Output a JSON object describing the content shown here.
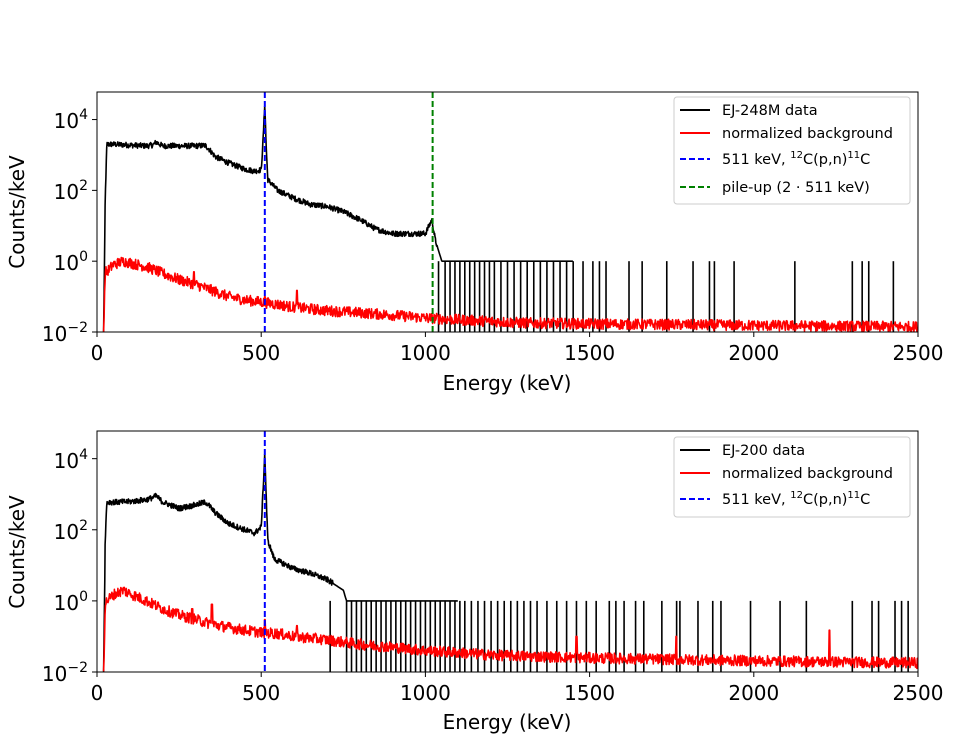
{
  "chart_data": [
    {
      "type": "line",
      "yscale": "log",
      "xlim": [
        0,
        2500
      ],
      "ylim": [
        0.01,
        60000
      ],
      "xticks": [
        "0",
        "500",
        "1000",
        "1500",
        "2000",
        "2500"
      ],
      "ytick_values": [
        0.01,
        1,
        100,
        10000
      ],
      "ytick_exponents": [
        "−2",
        "0",
        "2",
        "4"
      ],
      "ytick_base": "10",
      "xlabel": "Energy (keV)",
      "ylabel": "Counts/keV",
      "legend_position": "top-right",
      "series": [
        {
          "name": "EJ-248M data",
          "color": "#000000",
          "style": "solid",
          "points": [
            [
              20,
              0.01
            ],
            [
              25,
              50
            ],
            [
              30,
              2000
            ],
            [
              50,
              2000
            ],
            [
              100,
              1900
            ],
            [
              150,
              1800
            ],
            [
              170,
              1900
            ],
            [
              180,
              2300
            ],
            [
              200,
              1800
            ],
            [
              250,
              1800
            ],
            [
              300,
              1800
            ],
            [
              330,
              1850
            ],
            [
              340,
              1500
            ],
            [
              360,
              900
            ],
            [
              400,
              600
            ],
            [
              450,
              400
            ],
            [
              480,
              350
            ],
            [
              500,
              380
            ],
            [
              505,
              2000
            ],
            [
              511,
              30000
            ],
            [
              515,
              2000
            ],
            [
              520,
              200
            ],
            [
              550,
              100
            ],
            [
              600,
              60
            ],
            [
              650,
              40
            ],
            [
              700,
              35
            ],
            [
              750,
              25
            ],
            [
              800,
              15
            ],
            [
              850,
              8
            ],
            [
              900,
              6
            ],
            [
              950,
              6
            ],
            [
              1000,
              6
            ],
            [
              1020,
              15
            ],
            [
              1030,
              4
            ],
            [
              1040,
              2
            ],
            [
              1050,
              1
            ],
            [
              1100,
              1
            ],
            [
              1200,
              1
            ],
            [
              1300,
              1
            ],
            [
              1400,
              1
            ],
            [
              1450,
              1
            ]
          ],
          "spikes": [
            1040,
            1060,
            1075,
            1090,
            1105,
            1120,
            1135,
            1150,
            1165,
            1180,
            1195,
            1210,
            1230,
            1250,
            1270,
            1290,
            1310,
            1330,
            1350,
            1370,
            1390,
            1410,
            1430,
            1450,
            1480,
            1510,
            1530,
            1550,
            1620,
            1660,
            1735,
            1815,
            1865,
            1880,
            1940,
            2125,
            2300,
            2330,
            2350,
            2425
          ],
          "spike_value": 1
        },
        {
          "name": "normalized background",
          "color": "#ff0000",
          "style": "solid",
          "points": [
            [
              20,
              0.01
            ],
            [
              25,
              0.5
            ],
            [
              30,
              0.5
            ],
            [
              50,
              0.8
            ],
            [
              80,
              1.0
            ],
            [
              100,
              0.9
            ],
            [
              150,
              0.7
            ],
            [
              200,
              0.45
            ],
            [
              250,
              0.3
            ],
            [
              300,
              0.22
            ],
            [
              350,
              0.15
            ],
            [
              400,
              0.1
            ],
            [
              450,
              0.08
            ],
            [
              500,
              0.07
            ],
            [
              550,
              0.06
            ],
            [
              600,
              0.05
            ],
            [
              700,
              0.04
            ],
            [
              800,
              0.035
            ],
            [
              900,
              0.03
            ],
            [
              1000,
              0.025
            ],
            [
              1100,
              0.022
            ],
            [
              1200,
              0.02
            ],
            [
              1300,
              0.018
            ],
            [
              1500,
              0.017
            ],
            [
              1800,
              0.016
            ],
            [
              2100,
              0.015
            ],
            [
              2500,
              0.014
            ]
          ],
          "peaks": [
            [
              185,
              0.3
            ],
            [
              295,
              0.5
            ],
            [
              511,
              0.1
            ],
            [
              609,
              0.15
            ]
          ]
        },
        {
          "name": "511 keV, 12C(p,n)11C",
          "color": "#0000ff",
          "style": "dashed",
          "vline": 511
        },
        {
          "name": "pile-up (2 · 511 keV)",
          "color": "#008000",
          "style": "dashed",
          "vline": 1022
        }
      ],
      "legend": {
        "data_label": "EJ-248M data",
        "bg_label": "normalized background",
        "line511_pre": "511 keV, ",
        "line511_sup1": "12",
        "line511_mid": "C(p,n)",
        "line511_sup2": "11",
        "line511_post": "C",
        "pileup_label": "pile-up (2 · 511 keV)"
      }
    },
    {
      "type": "line",
      "yscale": "log",
      "xlim": [
        0,
        2500
      ],
      "ylim": [
        0.01,
        60000
      ],
      "xticks": [
        "0",
        "500",
        "1000",
        "1500",
        "2000",
        "2500"
      ],
      "ytick_values": [
        0.01,
        1,
        100,
        10000
      ],
      "ytick_exponents": [
        "−2",
        "0",
        "2",
        "4"
      ],
      "ytick_base": "10",
      "xlabel": "Energy (keV)",
      "ylabel": "Counts/keV",
      "legend_position": "top-right",
      "series": [
        {
          "name": "EJ-200 data",
          "color": "#000000",
          "style": "solid",
          "points": [
            [
              20,
              0.01
            ],
            [
              25,
              50
            ],
            [
              30,
              600
            ],
            [
              60,
              600
            ],
            [
              100,
              620
            ],
            [
              150,
              700
            ],
            [
              170,
              800
            ],
            [
              180,
              900
            ],
            [
              200,
              600
            ],
            [
              250,
              400
            ],
            [
              300,
              500
            ],
            [
              330,
              600
            ],
            [
              340,
              500
            ],
            [
              360,
              300
            ],
            [
              400,
              150
            ],
            [
              450,
              100
            ],
            [
              480,
              80
            ],
            [
              500,
              120
            ],
            [
              505,
              1000
            ],
            [
              511,
              15000
            ],
            [
              515,
              1000
            ],
            [
              520,
              50
            ],
            [
              540,
              15
            ],
            [
              600,
              8
            ],
            [
              650,
              6
            ],
            [
              700,
              4
            ],
            [
              750,
              2
            ],
            [
              760,
              1
            ],
            [
              800,
              1
            ],
            [
              900,
              1
            ],
            [
              1000,
              1
            ],
            [
              1100,
              1
            ]
          ],
          "spikes": [
            710,
            760,
            775,
            790,
            805,
            820,
            835,
            850,
            865,
            880,
            895,
            910,
            925,
            940,
            955,
            970,
            985,
            1000,
            1015,
            1030,
            1045,
            1060,
            1075,
            1090,
            1105,
            1120,
            1140,
            1160,
            1180,
            1200,
            1220,
            1240,
            1260,
            1280,
            1300,
            1320,
            1340,
            1370,
            1400,
            1430,
            1460,
            1490,
            1520,
            1560,
            1580,
            1605,
            1640,
            1665,
            1720,
            1765,
            1775,
            1830,
            1875,
            1900,
            1990,
            2080,
            2160,
            2300,
            2360,
            2380,
            2430,
            2450,
            2470
          ],
          "spike_value": 1
        },
        {
          "name": "normalized background",
          "color": "#ff0000",
          "style": "solid",
          "points": [
            [
              20,
              0.01
            ],
            [
              25,
              0.8
            ],
            [
              30,
              1.0
            ],
            [
              50,
              1.5
            ],
            [
              80,
              2.0
            ],
            [
              100,
              1.6
            ],
            [
              150,
              1.0
            ],
            [
              200,
              0.6
            ],
            [
              250,
              0.4
            ],
            [
              300,
              0.3
            ],
            [
              350,
              0.22
            ],
            [
              400,
              0.18
            ],
            [
              450,
              0.15
            ],
            [
              500,
              0.13
            ],
            [
              550,
              0.12
            ],
            [
              600,
              0.1
            ],
            [
              700,
              0.08
            ],
            [
              800,
              0.06
            ],
            [
              900,
              0.05
            ],
            [
              1000,
              0.04
            ],
            [
              1100,
              0.035
            ],
            [
              1200,
              0.03
            ],
            [
              1300,
              0.028
            ],
            [
              1500,
              0.025
            ],
            [
              1800,
              0.022
            ],
            [
              2100,
              0.02
            ],
            [
              2500,
              0.018
            ]
          ],
          "peaks": [
            [
              185,
              0.5
            ],
            [
              290,
              0.6
            ],
            [
              350,
              0.8
            ],
            [
              511,
              0.3
            ],
            [
              609,
              0.2
            ],
            [
              1460,
              0.1
            ],
            [
              1764,
              0.1
            ],
            [
              2230,
              0.15
            ]
          ]
        },
        {
          "name": "511 keV, 12C(p,n)11C",
          "color": "#0000ff",
          "style": "dashed",
          "vline": 511
        }
      ],
      "legend": {
        "data_label": "EJ-200 data",
        "bg_label": "normalized background",
        "line511_pre": "511 keV, ",
        "line511_sup1": "12",
        "line511_mid": "C(p,n)",
        "line511_sup2": "11",
        "line511_post": "C"
      }
    }
  ]
}
